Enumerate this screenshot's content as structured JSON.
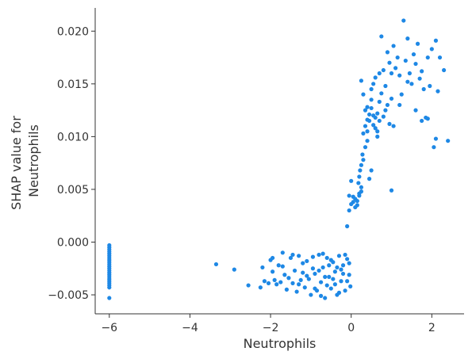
{
  "chart_data": {
    "type": "scatter",
    "title": "",
    "xlabel": "Neutrophils",
    "ylabel_lines": [
      "SHAP value for",
      "Neutrophils"
    ],
    "xlim": [
      -6.35,
      2.8
    ],
    "ylim": [
      -0.0068,
      0.0222
    ],
    "xticks": [
      -6,
      -4,
      -2,
      0,
      2
    ],
    "xtick_labels": [
      "−6",
      "−4",
      "−2",
      "0",
      "2"
    ],
    "yticks": [
      -0.005,
      0.0,
      0.005,
      0.01,
      0.015,
      0.02
    ],
    "ytick_labels": [
      "−0.005",
      "0.000",
      "0.005",
      "0.010",
      "0.015",
      "0.020"
    ],
    "grid": false,
    "point_color": "#1e88e5",
    "series": [
      {
        "points": [
          [
            -6,
            -0.0003
          ],
          [
            -6,
            -0.0005
          ],
          [
            -6,
            -0.0007
          ],
          [
            -6,
            -0.0009
          ],
          [
            -6,
            -0.0011
          ],
          [
            -6,
            -0.0013
          ],
          [
            -6,
            -0.0015
          ],
          [
            -6,
            -0.0017
          ],
          [
            -6,
            -0.0019
          ],
          [
            -6,
            -0.0021
          ],
          [
            -6,
            -0.0023
          ],
          [
            -6,
            -0.0025
          ],
          [
            -6,
            -0.0027
          ],
          [
            -6,
            -0.0029
          ],
          [
            -6,
            -0.0031
          ],
          [
            -6,
            -0.0033
          ],
          [
            -6,
            -0.0035
          ],
          [
            -6,
            -0.0037
          ],
          [
            -6,
            -0.0039
          ],
          [
            -6,
            -0.0041
          ],
          [
            -6,
            -0.0043
          ],
          [
            -6,
            -0.0053
          ],
          [
            -3.35,
            -0.0021
          ],
          [
            -2.9,
            -0.0026
          ],
          [
            -2.55,
            -0.0041
          ],
          [
            -2.25,
            -0.0043
          ],
          [
            -2.2,
            -0.0024
          ],
          [
            -2.15,
            -0.0037
          ],
          [
            -2.05,
            -0.0039
          ],
          [
            -2.0,
            -0.0017
          ],
          [
            -1.95,
            -0.0028
          ],
          [
            -1.9,
            -0.0036
          ],
          [
            -1.85,
            -0.004
          ],
          [
            -1.8,
            -0.0022
          ],
          [
            -1.75,
            -0.0038
          ],
          [
            -1.7,
            -0.001
          ],
          [
            -1.65,
            -0.0031
          ],
          [
            -1.6,
            -0.0045
          ],
          [
            -1.55,
            -0.0034
          ],
          [
            -1.5,
            -0.0015
          ],
          [
            -1.45,
            -0.0039
          ],
          [
            -1.4,
            -0.0027
          ],
          [
            -1.35,
            -0.0047
          ],
          [
            -1.3,
            -0.0013
          ],
          [
            -1.25,
            -0.0036
          ],
          [
            -1.2,
            -0.0029
          ],
          [
            -1.15,
            -0.0043
          ],
          [
            -1.1,
            -0.0018
          ],
          [
            -1.05,
            -0.0035
          ],
          [
            -1.0,
            -0.005
          ],
          [
            -0.95,
            -0.0014
          ],
          [
            -0.9,
            -0.003
          ],
          [
            -0.85,
            -0.0046
          ],
          [
            -0.8,
            -0.0012
          ],
          [
            -0.75,
            -0.0038
          ],
          [
            -0.7,
            -0.0024
          ],
          [
            -0.65,
            -0.0053
          ],
          [
            -0.6,
            -0.0015
          ],
          [
            -0.55,
            -0.0033
          ],
          [
            -0.5,
            -0.0044
          ],
          [
            -0.45,
            -0.0019
          ],
          [
            -0.4,
            -0.0028
          ],
          [
            -0.35,
            -0.005
          ],
          [
            -0.3,
            -0.0013
          ],
          [
            -0.25,
            -0.0037
          ],
          [
            -0.2,
            -0.0022
          ],
          [
            -0.15,
            -0.0046
          ],
          [
            -0.1,
            -0.0016
          ],
          [
            -0.05,
            -0.0031
          ],
          [
            -0.02,
            -0.0042
          ],
          [
            -1.95,
            -0.0015
          ],
          [
            -1.7,
            -0.0023
          ],
          [
            -1.45,
            -0.0012
          ],
          [
            -1.2,
            -0.002
          ],
          [
            -0.95,
            -0.0025
          ],
          [
            -0.7,
            -0.0011
          ],
          [
            -0.45,
            -0.0035
          ],
          [
            -0.2,
            -0.003
          ],
          [
            -0.6,
            -0.0041
          ],
          [
            -0.3,
            -0.0048
          ],
          [
            -0.9,
            -0.0044
          ],
          [
            -1.1,
            -0.0032
          ],
          [
            -0.8,
            -0.0027
          ],
          [
            -0.55,
            -0.0022
          ],
          [
            -0.4,
            -0.004
          ],
          [
            -0.1,
            -0.0037
          ],
          [
            -0.25,
            -0.0026
          ],
          [
            -0.5,
            -0.0017
          ],
          [
            -0.75,
            -0.0051
          ],
          [
            -0.15,
            -0.0012
          ],
          [
            -0.05,
            -0.002
          ],
          [
            -0.35,
            -0.0024
          ],
          [
            -0.65,
            -0.0033
          ],
          [
            -1.3,
            -0.004
          ],
          [
            -0.1,
            0.0015
          ],
          [
            -0.05,
            0.003
          ],
          [
            0.0,
            0.0036
          ],
          [
            0.05,
            0.0043
          ],
          [
            0.1,
            0.0033
          ],
          [
            0.15,
            0.0039
          ],
          [
            0.2,
            0.0046
          ],
          [
            0.25,
            0.0052
          ],
          [
            0.0,
            0.0058
          ],
          [
            0.05,
            0.0038
          ],
          [
            0.1,
            0.0041
          ],
          [
            0.15,
            0.0035
          ],
          [
            0.2,
            0.0044
          ],
          [
            0.25,
            0.0048
          ],
          [
            -0.05,
            0.0044
          ],
          [
            0.18,
            0.0056
          ],
          [
            0.2,
            0.0062
          ],
          [
            0.22,
            0.0068
          ],
          [
            0.25,
            0.0073
          ],
          [
            0.3,
            0.0078
          ],
          [
            0.28,
            0.0083
          ],
          [
            0.35,
            0.009
          ],
          [
            0.4,
            0.0096
          ],
          [
            0.45,
            0.006
          ],
          [
            0.5,
            0.0068
          ],
          [
            0.3,
            0.0103
          ],
          [
            0.35,
            0.011
          ],
          [
            0.4,
            0.0116
          ],
          [
            0.45,
            0.0121
          ],
          [
            0.5,
            0.0127
          ],
          [
            0.55,
            0.0111
          ],
          [
            0.6,
            0.0118
          ],
          [
            0.65,
            0.0105
          ],
          [
            0.7,
            0.0133
          ],
          [
            0.75,
            0.0141
          ],
          [
            0.8,
            0.0119
          ],
          [
            0.85,
            0.0125
          ],
          [
            0.9,
            0.013
          ],
          [
            0.95,
            0.0112
          ],
          [
            1.0,
            0.0136
          ],
          [
            0.25,
            0.0153
          ],
          [
            0.3,
            0.014
          ],
          [
            0.4,
            0.0128
          ],
          [
            0.5,
            0.0145
          ],
          [
            0.55,
            0.015
          ],
          [
            0.6,
            0.0156
          ],
          [
            0.65,
            0.01
          ],
          [
            0.7,
            0.016
          ],
          [
            0.75,
            0.0195
          ],
          [
            0.8,
            0.0163
          ],
          [
            0.85,
            0.0148
          ],
          [
            0.9,
            0.018
          ],
          [
            0.95,
            0.017
          ],
          [
            1.0,
            0.0049
          ],
          [
            1.05,
            0.0186
          ],
          [
            1.1,
            0.0165
          ],
          [
            1.15,
            0.0175
          ],
          [
            1.2,
            0.0158
          ],
          [
            1.25,
            0.014
          ],
          [
            1.3,
            0.021
          ],
          [
            1.35,
            0.0172
          ],
          [
            1.4,
            0.0193
          ],
          [
            1.45,
            0.016
          ],
          [
            1.5,
            0.015
          ],
          [
            1.55,
            0.0178
          ],
          [
            1.6,
            0.0169
          ],
          [
            1.65,
            0.0188
          ],
          [
            1.7,
            0.0155
          ],
          [
            1.75,
            0.0162
          ],
          [
            1.8,
            0.0145
          ],
          [
            1.85,
            0.0118
          ],
          [
            1.9,
            0.0175
          ],
          [
            1.95,
            0.0148
          ],
          [
            2.0,
            0.0183
          ],
          [
            2.05,
            0.009
          ],
          [
            2.1,
            0.0191
          ],
          [
            2.15,
            0.0143
          ],
          [
            2.2,
            0.0175
          ],
          [
            2.3,
            0.0163
          ],
          [
            2.4,
            0.0096
          ],
          [
            1.75,
            0.0115
          ],
          [
            1.6,
            0.0125
          ],
          [
            1.2,
            0.013
          ],
          [
            1.05,
            0.011
          ],
          [
            0.45,
            0.0115
          ],
          [
            0.55,
            0.012
          ],
          [
            0.6,
            0.0108
          ],
          [
            0.35,
            0.0125
          ],
          [
            0.4,
            0.0105
          ],
          [
            0.5,
            0.0135
          ],
          [
            0.65,
            0.0122
          ],
          [
            0.7,
            0.0115
          ],
          [
            2.1,
            0.0098
          ],
          [
            1.9,
            0.0117
          ],
          [
            1.4,
            0.0152
          ],
          [
            1.0,
            0.016
          ]
        ]
      }
    ]
  }
}
